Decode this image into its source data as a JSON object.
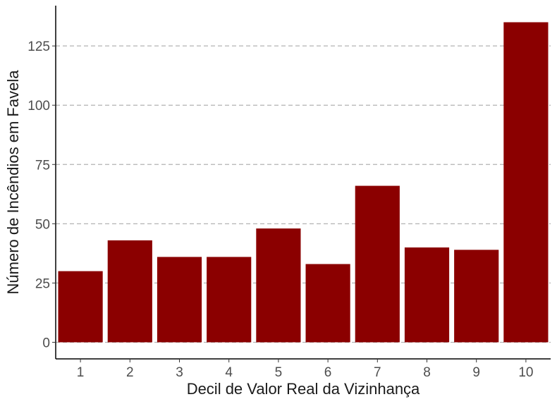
{
  "chart_data": {
    "type": "bar",
    "title": "",
    "xlabel": "Decil de Valor Real da Vizinhança",
    "ylabel": "Número de Incêndios em Favela",
    "categories": [
      "1",
      "2",
      "3",
      "4",
      "5",
      "6",
      "7",
      "8",
      "9",
      "10"
    ],
    "values": [
      30,
      43,
      36,
      36,
      48,
      33,
      66,
      40,
      39,
      135
    ],
    "yticks": [
      0,
      25,
      50,
      75,
      100,
      125
    ],
    "ylim": [
      -7,
      142
    ],
    "grid": "horizontal dashed",
    "bar_color": "#8b0000",
    "grid_color": "#b3b3b3"
  }
}
